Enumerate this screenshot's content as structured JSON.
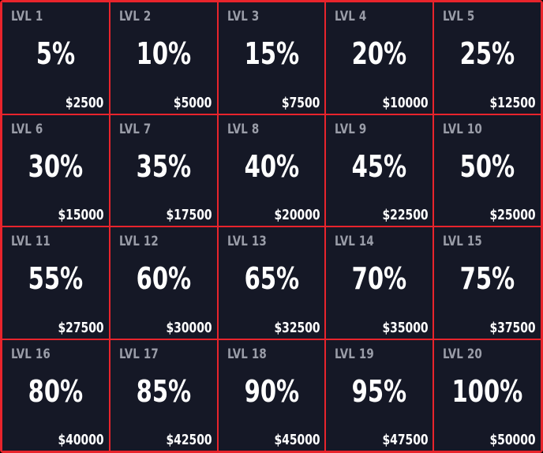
{
  "accent_color": "#e8242c",
  "cell_background": "#151826",
  "levels": [
    {
      "label": "LVL 1",
      "percent": "5%",
      "price": "$2500"
    },
    {
      "label": "LVL 2",
      "percent": "10%",
      "price": "$5000"
    },
    {
      "label": "LVL 3",
      "percent": "15%",
      "price": "$7500"
    },
    {
      "label": "LVL 4",
      "percent": "20%",
      "price": "$10000"
    },
    {
      "label": "LVL 5",
      "percent": "25%",
      "price": "$12500"
    },
    {
      "label": "LVL 6",
      "percent": "30%",
      "price": "$15000"
    },
    {
      "label": "LVL 7",
      "percent": "35%",
      "price": "$17500"
    },
    {
      "label": "LVL 8",
      "percent": "40%",
      "price": "$20000"
    },
    {
      "label": "LVL 9",
      "percent": "45%",
      "price": "$22500"
    },
    {
      "label": "LVL 10",
      "percent": "50%",
      "price": "$25000"
    },
    {
      "label": "LVL 11",
      "percent": "55%",
      "price": "$27500"
    },
    {
      "label": "LVL 12",
      "percent": "60%",
      "price": "$30000"
    },
    {
      "label": "LVL 13",
      "percent": "65%",
      "price": "$32500"
    },
    {
      "label": "LVL 14",
      "percent": "70%",
      "price": "$35000"
    },
    {
      "label": "LVL 15",
      "percent": "75%",
      "price": "$37500"
    },
    {
      "label": "LVL 16",
      "percent": "80%",
      "price": "$40000"
    },
    {
      "label": "LVL 17",
      "percent": "85%",
      "price": "$42500"
    },
    {
      "label": "LVL 18",
      "percent": "90%",
      "price": "$45000"
    },
    {
      "label": "LVL 19",
      "percent": "95%",
      "price": "$47500"
    },
    {
      "label": "LVL 20",
      "percent": "100%",
      "price": "$50000"
    }
  ]
}
